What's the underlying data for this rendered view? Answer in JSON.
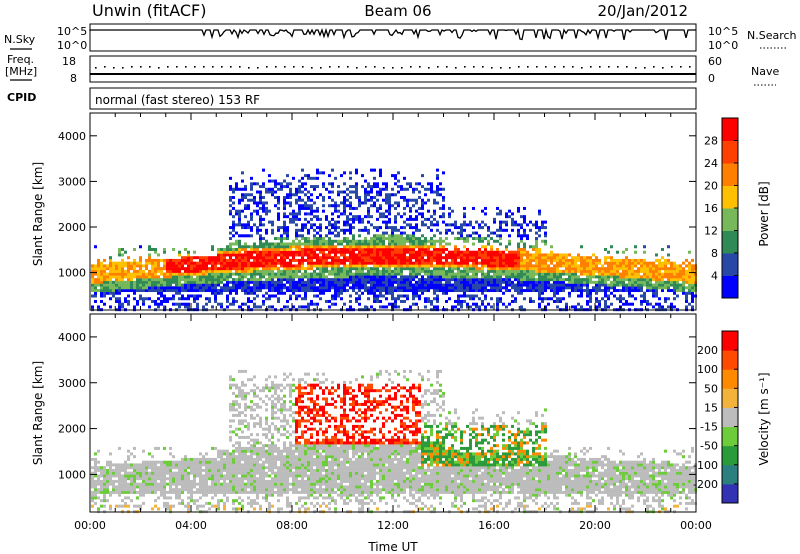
{
  "header": {
    "station": "Unwin (fitACF)",
    "beam": "Beam 06",
    "date": "20/Jan/2012"
  },
  "nsky_panel": {
    "left_label": "N.Sky",
    "left_ticks": [
      "10^5",
      "10^0"
    ],
    "right_ticks": [
      "10^5",
      "10^0"
    ],
    "right_label": "N.Search"
  },
  "freq_panel": {
    "left_label_line1": "Freq.",
    "left_label_line2": "[MHz]",
    "left_ticks": [
      "18",
      "8"
    ],
    "right_ticks": [
      "60",
      "0"
    ],
    "right_label": "Nave"
  },
  "cpid_panel": {
    "label": "CPID",
    "text": "normal (fast stereo) 153 RF"
  },
  "chart_data": [
    {
      "type": "heatmap",
      "parameter": "Power",
      "ylabel": "Slant Range [km]",
      "ylim": [
        180,
        4500
      ],
      "yticks": [
        "1000",
        "2000",
        "3000",
        "4000"
      ],
      "xlim": [
        "00:00",
        "24:00"
      ],
      "colorbar_label": "Power [dB]",
      "colorbar_ticks": [
        "28",
        "24",
        "20",
        "16",
        "12",
        "8",
        "4"
      ],
      "colorbar_colors": [
        "#0000ff",
        "#2848a8",
        "#2f8a55",
        "#77b85a",
        "#ffc000",
        "#ff8000",
        "#ff4000",
        "#ff0000"
      ]
    },
    {
      "type": "heatmap",
      "parameter": "Velocity",
      "ylabel": "Slant Range [km]",
      "ylim": [
        180,
        4500
      ],
      "yticks": [
        "1000",
        "2000",
        "3000",
        "4000"
      ],
      "xlim": [
        "00:00",
        "24:00"
      ],
      "xlabel": "Time UT",
      "xticks": [
        "00:00",
        "04:00",
        "08:00",
        "12:00",
        "16:00",
        "20:00",
        "00:00"
      ],
      "colorbar_label": "Velocity [m s⁻¹]",
      "colorbar_ticks": [
        "200",
        "100",
        "50",
        "15",
        "-15",
        "-50",
        "-100",
        "-200"
      ],
      "colorbar_colors": [
        "#3232b4",
        "#2c7f7f",
        "#2a9a3a",
        "#6dcc3a",
        "#bcbcbc",
        "#f3b23a",
        "#ff8a00",
        "#ff4a00",
        "#ff0000"
      ]
    }
  ]
}
